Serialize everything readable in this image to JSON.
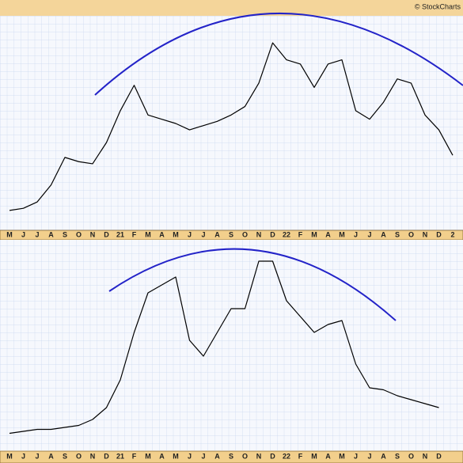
{
  "header": {
    "source": "© StockCharts"
  },
  "chart_data": [
    {
      "type": "line",
      "color": "#000000",
      "categories": [
        "M",
        "J",
        "J",
        "A",
        "S",
        "O",
        "N",
        "D",
        "21",
        "F",
        "M",
        "A",
        "M",
        "J",
        "J",
        "A",
        "S",
        "O",
        "N",
        "D",
        "22",
        "F",
        "M",
        "A",
        "M",
        "J",
        "J",
        "A",
        "S",
        "O",
        "N",
        "D",
        "2"
      ],
      "values": [
        9,
        10,
        13,
        21,
        34,
        32,
        31,
        41,
        56,
        68,
        54,
        52,
        50,
        47,
        49,
        51,
        54,
        58,
        69,
        88,
        80,
        78,
        67,
        78,
        80,
        56,
        52,
        60,
        71,
        69,
        54,
        47,
        35
      ],
      "ylim": [
        0,
        100
      ]
    },
    {
      "type": "line",
      "color": "#000000",
      "categories": [
        "M",
        "J",
        "J",
        "A",
        "S",
        "O",
        "N",
        "D",
        "21",
        "F",
        "M",
        "A",
        "M",
        "J",
        "J",
        "A",
        "S",
        "O",
        "N",
        "D",
        "22",
        "F",
        "M",
        "A",
        "M",
        "J",
        "J",
        "A",
        "S",
        "O",
        "N",
        "D"
      ],
      "values": [
        3,
        4,
        5,
        5,
        6,
        7,
        10,
        16,
        30,
        54,
        74,
        78,
        82,
        50,
        42,
        54,
        66,
        66,
        90,
        90,
        70,
        62,
        54,
        58,
        60,
        38,
        26,
        25,
        22,
        20,
        18,
        16
      ],
      "ylim": [
        0,
        100
      ]
    }
  ]
}
